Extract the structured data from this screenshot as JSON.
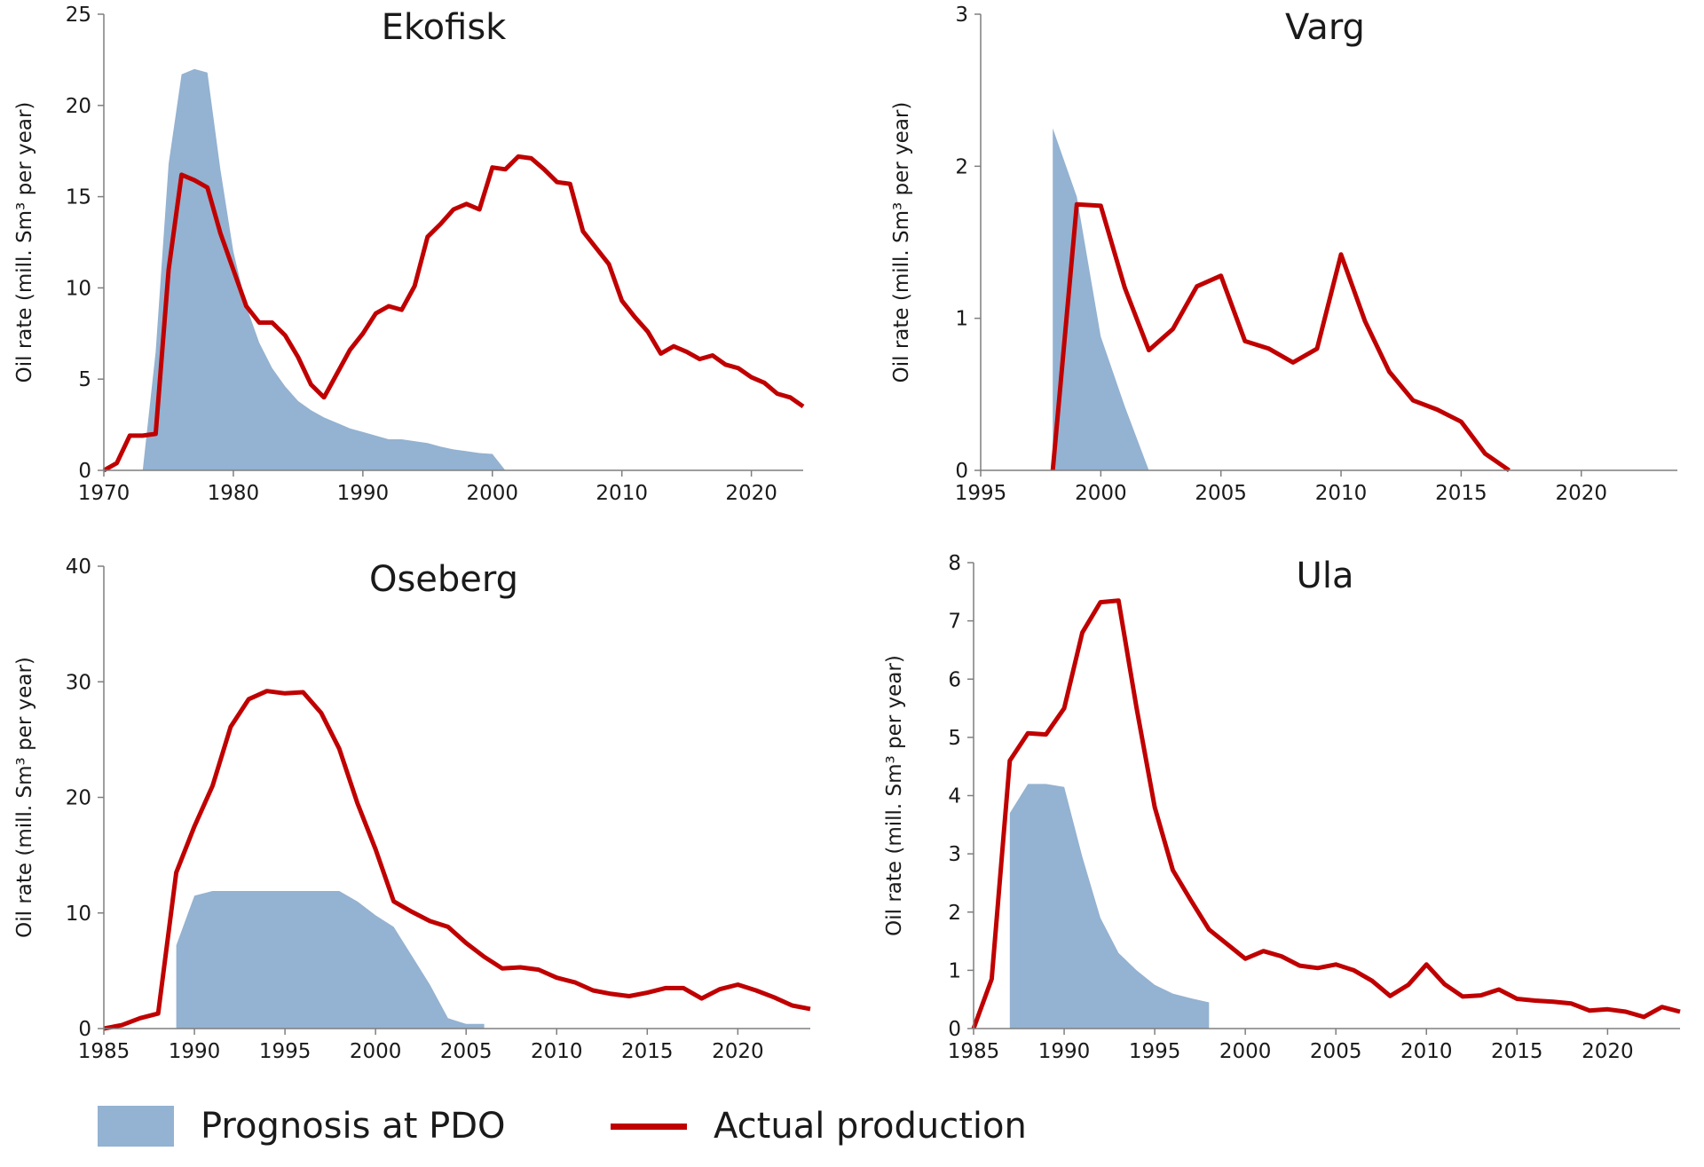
{
  "legend": {
    "prognosis_label": "Prognosis at PDO",
    "actual_label": "Actual production"
  },
  "colors": {
    "prognosis": "#94b2d1",
    "actual": "#c00000",
    "axis": "#7f7f7f",
    "text": "#1a1a1a"
  },
  "chart_data": [
    {
      "type": "area",
      "title": "Ekofisk",
      "xlabel": "",
      "ylabel": "Oil rate (mill. Sm³ per year)",
      "xlim": [
        1970,
        2024
      ],
      "ylim": [
        0,
        25
      ],
      "xticks": [
        1970,
        1980,
        1990,
        2000,
        2010,
        2020
      ],
      "yticks": [
        0,
        5,
        10,
        15,
        20,
        25
      ],
      "series": [
        {
          "name": "Prognosis at PDO",
          "kind": "area",
          "x": [
            1973,
            1974,
            1975,
            1976,
            1977,
            1978,
            1979,
            1980,
            1981,
            1982,
            1983,
            1984,
            1985,
            1986,
            1987,
            1988,
            1989,
            1990,
            1991,
            1992,
            1993,
            1994,
            1995,
            1996,
            1997,
            1998,
            1999,
            2000,
            2001
          ],
          "y": [
            0,
            6.5,
            16.8,
            21.7,
            22.0,
            21.8,
            16.5,
            12.0,
            9.0,
            7.0,
            5.6,
            4.6,
            3.8,
            3.3,
            2.9,
            2.6,
            2.3,
            2.1,
            1.9,
            1.7,
            1.7,
            1.6,
            1.5,
            1.3,
            1.15,
            1.05,
            0.95,
            0.9,
            0
          ]
        },
        {
          "name": "Actual production",
          "kind": "line",
          "x": [
            1970,
            1971,
            1972,
            1973,
            1974,
            1975,
            1976,
            1977,
            1978,
            1979,
            1980,
            1981,
            1982,
            1983,
            1984,
            1985,
            1986,
            1987,
            1988,
            1989,
            1990,
            1991,
            1992,
            1993,
            1994,
            1995,
            1996,
            1997,
            1998,
            1999,
            2000,
            2001,
            2002,
            2003,
            2004,
            2005,
            2006,
            2007,
            2008,
            2009,
            2010,
            2011,
            2012,
            2013,
            2014,
            2015,
            2016,
            2017,
            2018,
            2019,
            2020,
            2021,
            2022,
            2023,
            2024
          ],
          "y": [
            0,
            0.4,
            1.9,
            1.9,
            2.0,
            11.0,
            16.2,
            15.9,
            15.5,
            13.0,
            11.0,
            9.0,
            8.1,
            8.1,
            7.4,
            6.2,
            4.7,
            4.0,
            5.3,
            6.6,
            7.5,
            8.6,
            9.0,
            8.8,
            10.1,
            12.8,
            13.5,
            14.3,
            14.6,
            14.3,
            16.6,
            16.5,
            17.2,
            17.1,
            16.5,
            15.8,
            15.7,
            13.1,
            12.2,
            11.3,
            9.3,
            8.4,
            7.6,
            6.4,
            6.8,
            6.5,
            6.1,
            6.3,
            5.8,
            5.6,
            5.1,
            4.8,
            4.2,
            4.0,
            3.5
          ]
        }
      ]
    },
    {
      "type": "area",
      "title": "Varg",
      "xlabel": "",
      "ylabel": "Oil rate (mill. Sm³ per year)",
      "xlim": [
        1995,
        2024
      ],
      "ylim": [
        0,
        3
      ],
      "xticks": [
        1995,
        2000,
        2005,
        2010,
        2015,
        2020
      ],
      "yticks": [
        0,
        1,
        2,
        3
      ],
      "series": [
        {
          "name": "Prognosis at PDO",
          "kind": "area",
          "x": [
            1998,
            1999,
            2000,
            2001,
            2002
          ],
          "y": [
            2.25,
            1.8,
            0.88,
            0.42,
            0
          ]
        },
        {
          "name": "Actual production",
          "kind": "line",
          "x": [
            1998,
            1999,
            2000,
            2001,
            2002,
            2003,
            2004,
            2005,
            2006,
            2007,
            2008,
            2009,
            2010,
            2011,
            2012,
            2013,
            2014,
            2015,
            2016,
            2017
          ],
          "y": [
            0,
            1.75,
            1.74,
            1.2,
            0.79,
            0.93,
            1.21,
            1.28,
            0.85,
            0.8,
            0.71,
            0.8,
            1.42,
            0.98,
            0.65,
            0.46,
            0.4,
            0.32,
            0.11,
            0
          ]
        }
      ]
    },
    {
      "type": "area",
      "title": "Oseberg",
      "xlabel": "",
      "ylabel": "Oil rate (mill. Sm³ per year)",
      "xlim": [
        1985,
        2024
      ],
      "ylim": [
        0,
        40
      ],
      "xticks": [
        1985,
        1990,
        1995,
        2000,
        2005,
        2010,
        2015,
        2020
      ],
      "yticks": [
        0,
        10,
        20,
        30,
        40
      ],
      "series": [
        {
          "name": "Prognosis at PDO",
          "kind": "area",
          "x": [
            1989,
            1990,
            1991,
            1992,
            1993,
            1994,
            1995,
            1996,
            1997,
            1998,
            1999,
            2000,
            2001,
            2002,
            2003,
            2004,
            2005,
            2006
          ],
          "y": [
            7.2,
            11.5,
            11.9,
            11.9,
            11.9,
            11.9,
            11.9,
            11.9,
            11.9,
            11.9,
            11.0,
            9.8,
            8.8,
            6.3,
            3.8,
            0.9,
            0.4,
            0.4
          ]
        },
        {
          "name": "Actual production",
          "kind": "line",
          "x": [
            1985,
            1986,
            1987,
            1988,
            1989,
            1990,
            1991,
            1992,
            1993,
            1994,
            1995,
            1996,
            1997,
            1998,
            1999,
            2000,
            2001,
            2002,
            2003,
            2004,
            2005,
            2006,
            2007,
            2008,
            2009,
            2010,
            2011,
            2012,
            2013,
            2014,
            2015,
            2016,
            2017,
            2018,
            2019,
            2020,
            2021,
            2022,
            2023,
            2024
          ],
          "y": [
            0,
            0.3,
            0.9,
            1.3,
            13.5,
            17.5,
            21.0,
            26.1,
            28.5,
            29.2,
            29.0,
            29.1,
            27.3,
            24.2,
            19.5,
            15.5,
            11.0,
            10.1,
            9.3,
            8.8,
            7.4,
            6.2,
            5.2,
            5.3,
            5.1,
            4.4,
            4.0,
            3.3,
            3.0,
            2.8,
            3.1,
            3.5,
            3.5,
            2.6,
            3.4,
            3.8,
            3.3,
            2.7,
            2.0,
            1.7
          ]
        }
      ]
    },
    {
      "type": "area",
      "title": "Ula",
      "xlabel": "",
      "ylabel": "Oil rate (mill. Sm³ per year)",
      "xlim": [
        1985,
        2024
      ],
      "ylim": [
        0,
        8
      ],
      "xticks": [
        1985,
        1990,
        1995,
        2000,
        2005,
        2010,
        2015,
        2020
      ],
      "yticks": [
        0,
        1,
        2,
        3,
        4,
        5,
        6,
        7,
        8
      ],
      "series": [
        {
          "name": "Prognosis at PDO",
          "kind": "area",
          "x": [
            1987,
            1988,
            1989,
            1990,
            1991,
            1992,
            1993,
            1994,
            1995,
            1996,
            1997,
            1998
          ],
          "y": [
            3.7,
            4.2,
            4.2,
            4.15,
            2.95,
            1.9,
            1.3,
            1.0,
            0.75,
            0.6,
            0.52,
            0.45
          ]
        },
        {
          "name": "Actual production",
          "kind": "line",
          "x": [
            1985,
            1986,
            1987,
            1988,
            1989,
            1990,
            1991,
            1992,
            1993,
            1994,
            1995,
            1996,
            1997,
            1998,
            1999,
            2000,
            2001,
            2002,
            2003,
            2004,
            2005,
            2006,
            2007,
            2008,
            2009,
            2010,
            2011,
            2012,
            2013,
            2014,
            2015,
            2016,
            2017,
            2018,
            2019,
            2020,
            2021,
            2022,
            2023,
            2024
          ],
          "y": [
            0,
            0.85,
            4.6,
            5.07,
            5.05,
            5.5,
            6.8,
            7.32,
            7.35,
            5.5,
            3.8,
            2.72,
            2.2,
            1.7,
            1.45,
            1.2,
            1.33,
            1.24,
            1.08,
            1.04,
            1.1,
            1.0,
            0.82,
            0.56,
            0.75,
            1.1,
            0.76,
            0.55,
            0.57,
            0.67,
            0.51,
            0.48,
            0.46,
            0.43,
            0.31,
            0.33,
            0.29,
            0.2,
            0.37,
            0.29
          ]
        }
      ]
    }
  ]
}
